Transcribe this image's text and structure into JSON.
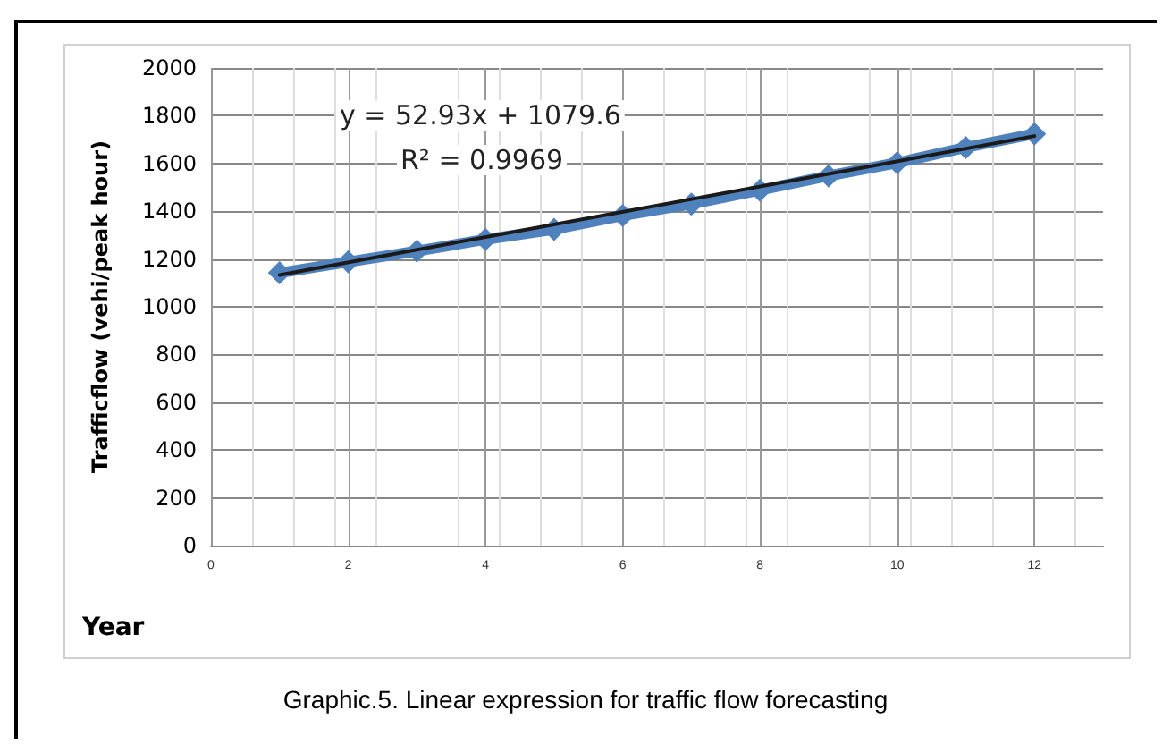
{
  "chart_data": {
    "type": "line",
    "xlabel": "Year",
    "ylabel": "Trafficflow (vehi/peak hour)",
    "x": [
      1,
      2,
      3,
      4,
      5,
      6,
      7,
      8,
      9,
      10,
      11,
      12
    ],
    "series": [
      {
        "color": "#4f81bd",
        "values": [
          1142,
          1188,
          1233,
          1282,
          1324,
          1382,
          1430,
          1488,
          1548,
          1603,
          1667,
          1724
        ],
        "marker": "diamond"
      },
      {
        "type": "line",
        "color": "#1a1a1a",
        "x": [
          1,
          12
        ],
        "values": [
          1133,
          1715
        ],
        "marker": "none"
      }
    ],
    "xlim": [
      0,
      13
    ],
    "xticks": [
      0,
      2,
      4,
      6,
      8,
      10,
      12
    ],
    "ylim": [
      0,
      2000
    ],
    "yticks": [
      0,
      200,
      400,
      600,
      800,
      1000,
      1200,
      1400,
      1600,
      1800,
      2000
    ],
    "grid": true,
    "annotations": [
      "y = 52.93x + 1079.6",
      "R² = 0.9969",
      "Graphic.5. Linear expression for traffic flow forecasting"
    ]
  }
}
